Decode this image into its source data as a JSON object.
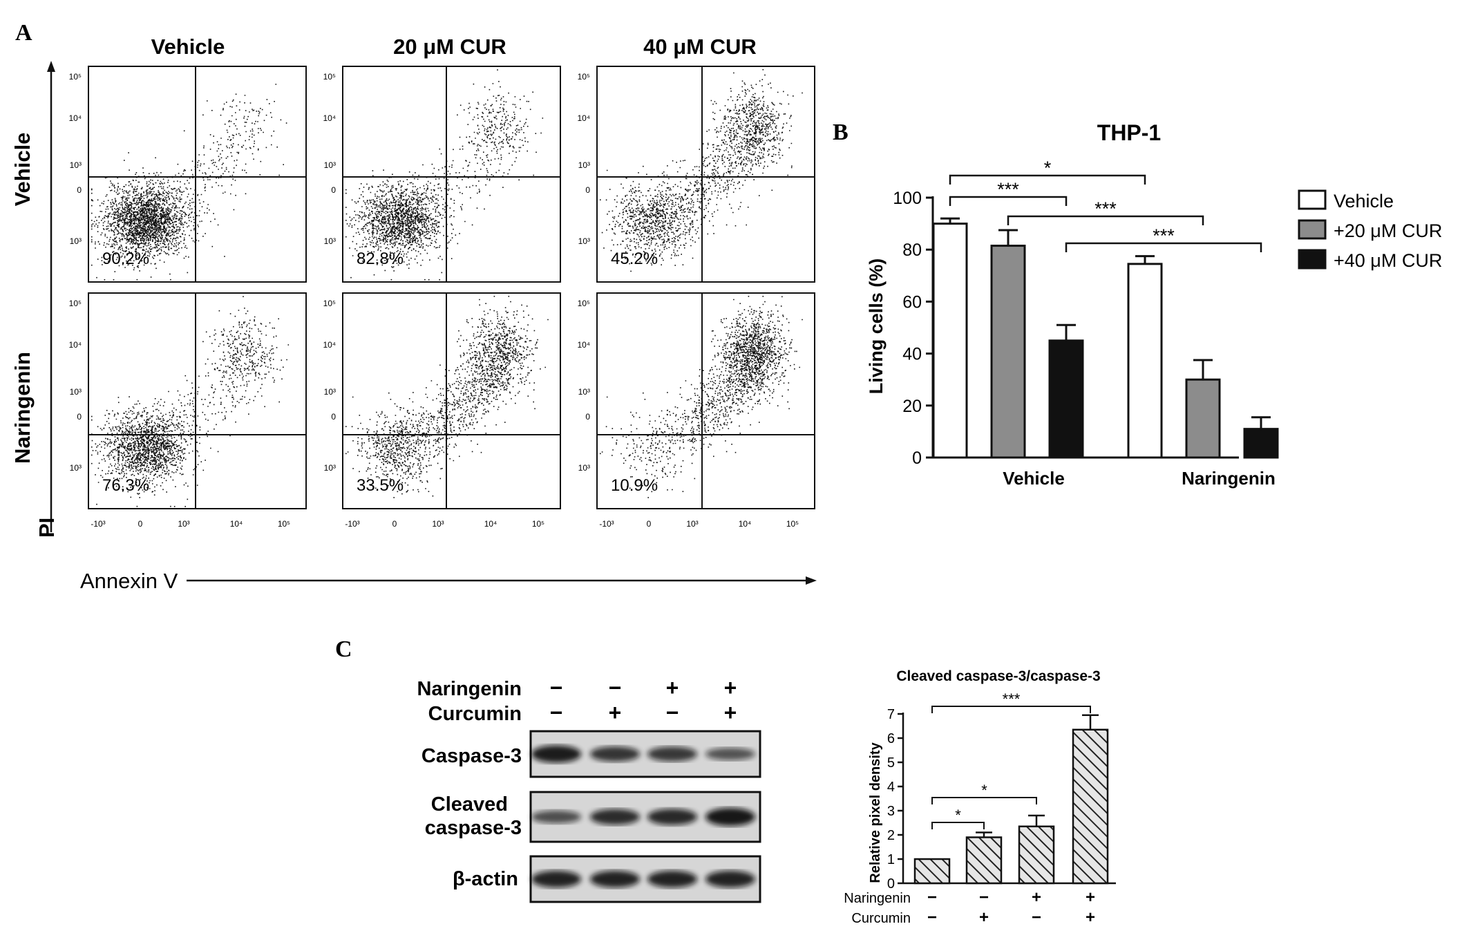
{
  "panel_labels": {
    "a": "A",
    "b": "B",
    "c": "C"
  },
  "panel_a": {
    "col_headers": [
      "Vehicle",
      "20 μM CUR",
      "40 μM CUR"
    ],
    "row_headers": [
      "Vehicle",
      "Naringenin"
    ],
    "y_axis_label": "PI",
    "x_axis_label": "Annexin V",
    "y_ticks": [
      "10⁵",
      "10⁴",
      "10³",
      "0",
      "10³"
    ],
    "x_ticks": [
      "-10³",
      "0",
      "10³",
      "10⁴",
      "10⁵"
    ],
    "percentages": [
      [
        "90.2%",
        "82.8%",
        "45.2%"
      ],
      [
        "76.3%",
        "33.5%",
        "10.9%"
      ]
    ]
  },
  "chart_data": [
    {
      "type": "bar",
      "title": "THP-1",
      "ylabel": "Living cells (%)",
      "xlabel": "",
      "ylim": [
        0,
        100
      ],
      "yticks": [
        "0",
        "20",
        "40",
        "60",
        "80",
        "100"
      ],
      "categories": [
        "Vehicle",
        "Naringenin"
      ],
      "series": [
        {
          "name": "Vehicle",
          "values": [
            90,
            74.5
          ],
          "errors": [
            2,
            3
          ],
          "color": "#ffffff"
        },
        {
          "name": "+20 μM CUR",
          "values": [
            81.5,
            30
          ],
          "errors": [
            6,
            7.5
          ],
          "color": "#8c8c8c"
        },
        {
          "name": "+40 μM CUR",
          "values": [
            45,
            11
          ],
          "errors": [
            6,
            4.5
          ],
          "color": "#111111"
        }
      ],
      "significance": [
        "*",
        "***",
        "***",
        "***"
      ],
      "legend_position": "right"
    },
    {
      "type": "bar",
      "title": "Cleaved caspase-3/caspase-3",
      "ylabel": "Relative pixel density",
      "ylim": [
        0,
        7
      ],
      "yticks": [
        "0",
        "1",
        "2",
        "3",
        "4",
        "5",
        "6",
        "7"
      ],
      "values": [
        1.0,
        1.9,
        2.35,
        6.35
      ],
      "errors": [
        0,
        0.2,
        0.45,
        0.6
      ],
      "treatment_rows": [
        {
          "label": "Naringenin",
          "signs": [
            "−",
            "−",
            "+",
            "+"
          ]
        },
        {
          "label": "Curcumin",
          "signs": [
            "−",
            "+",
            "−",
            "+"
          ]
        }
      ],
      "significance": [
        "*",
        "*",
        "***"
      ]
    }
  ],
  "panel_c_blot": {
    "treatment_rows": [
      {
        "label": "Naringenin",
        "signs": [
          "−",
          "−",
          "+",
          "+"
        ]
      },
      {
        "label": "Curcumin",
        "signs": [
          "−",
          "+",
          "−",
          "+"
        ]
      }
    ],
    "band_rows": [
      "Caspase-3",
      "Cleaved caspase-3",
      "β-actin"
    ],
    "cleaved_label_lines": [
      "Cleaved",
      "caspase-3"
    ]
  },
  "colors": {
    "ink": "#111111",
    "gray_bar": "#8c8c8c",
    "background": "#ffffff"
  }
}
